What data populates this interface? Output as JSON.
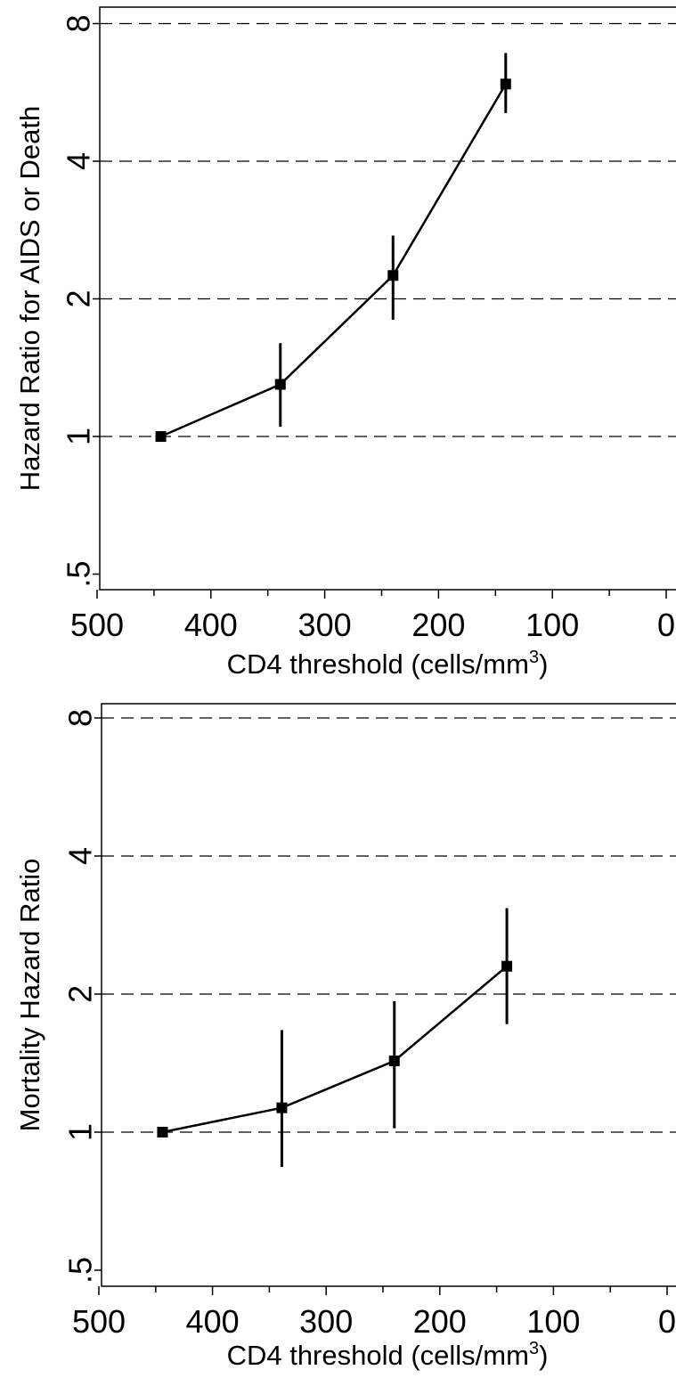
{
  "chart_data": [
    {
      "type": "line",
      "title": "",
      "xlabel": "CD4 threshold (cells/mm",
      "xlabel_sup": "3",
      "xlabel_close": ")",
      "ylabel": "Hazard Ratio for AIDS or Death",
      "y_scale": "log2",
      "xlim": [
        500,
        0
      ],
      "ylim": [
        0.5,
        8
      ],
      "x_ticks": [
        "500",
        "400",
        "300",
        "200",
        "100",
        "0"
      ],
      "y_ticks": [
        ".5",
        "1",
        "2",
        "4",
        "8"
      ],
      "grid": "dashed horizontal at 1, 2, 4, 8",
      "series": [
        {
          "x": [
            444,
            339,
            240,
            141
          ],
          "y": [
            1.0,
            1.3,
            2.25,
            5.9
          ],
          "ci_low": [
            1.0,
            1.05,
            1.8,
            5.1
          ],
          "ci_high": [
            1.0,
            1.6,
            2.75,
            6.9
          ]
        }
      ]
    },
    {
      "type": "line",
      "title": "",
      "xlabel": "CD4 threshold (cells/mm",
      "xlabel_sup": "3",
      "xlabel_close": ")",
      "ylabel": "Mortality Hazard Ratio",
      "y_scale": "log2",
      "xlim": [
        500,
        0
      ],
      "ylim": [
        0.5,
        8
      ],
      "x_ticks": [
        "500",
        "400",
        "300",
        "200",
        "100",
        "0"
      ],
      "y_ticks": [
        ".5",
        "1",
        "2",
        "4",
        "8"
      ],
      "grid": "dashed horizontal at 1, 2, 4, 8",
      "series": [
        {
          "x": [
            444,
            339,
            240,
            141
          ],
          "y": [
            1.0,
            1.13,
            1.43,
            2.3
          ],
          "ci_low": [
            1.0,
            0.84,
            1.02,
            1.72
          ],
          "ci_high": [
            1.0,
            1.67,
            1.93,
            3.08
          ]
        }
      ]
    }
  ]
}
